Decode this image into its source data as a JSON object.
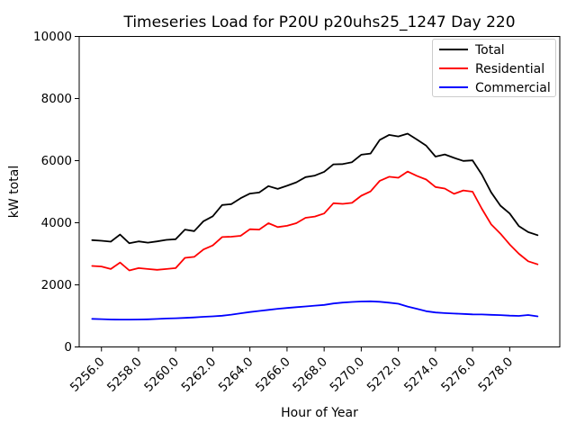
{
  "chart_data": {
    "type": "line",
    "title": "Timeseries Load for P20U p20uhs25_1247  Day 220",
    "xlabel": "Hour of Year",
    "ylabel": "kW total",
    "xlim": [
      5254.8,
      5280.7
    ],
    "ylim": [
      0,
      10000
    ],
    "grid": false,
    "legend_position": "upper right",
    "x": [
      5255.5,
      5256.0,
      5256.5,
      5257.0,
      5257.5,
      5258.0,
      5258.5,
      5259.0,
      5259.5,
      5260.0,
      5260.5,
      5261.0,
      5261.5,
      5262.0,
      5262.5,
      5263.0,
      5263.5,
      5264.0,
      5264.5,
      5265.0,
      5265.5,
      5266.0,
      5266.5,
      5267.0,
      5267.5,
      5268.0,
      5268.5,
      5269.0,
      5269.5,
      5270.0,
      5270.5,
      5271.0,
      5271.5,
      5272.0,
      5272.5,
      5273.0,
      5273.5,
      5274.0,
      5274.5,
      5275.0,
      5275.5,
      5276.0,
      5276.5,
      5277.0,
      5277.5,
      5278.0,
      5278.5,
      5279.0,
      5279.5
    ],
    "series": [
      {
        "name": "Total",
        "color": "#000000",
        "values": [
          3440,
          3420,
          3390,
          3620,
          3340,
          3400,
          3360,
          3400,
          3450,
          3470,
          3780,
          3730,
          4050,
          4210,
          4570,
          4600,
          4790,
          4940,
          4975,
          5180,
          5090,
          5190,
          5300,
          5470,
          5520,
          5640,
          5880,
          5890,
          5950,
          6190,
          6230,
          6670,
          6830,
          6780,
          6870,
          6680,
          6480,
          6130,
          6200,
          6090,
          5990,
          6010,
          5550,
          4980,
          4550,
          4300,
          3890,
          3700,
          3600
        ]
      },
      {
        "name": "Residential",
        "color": "#ff0000",
        "values": [
          2610,
          2590,
          2510,
          2720,
          2465,
          2540,
          2510,
          2485,
          2510,
          2540,
          2870,
          2900,
          3140,
          3270,
          3540,
          3550,
          3580,
          3790,
          3780,
          3985,
          3860,
          3900,
          3985,
          4160,
          4200,
          4300,
          4630,
          4610,
          4640,
          4870,
          5010,
          5350,
          5480,
          5450,
          5650,
          5510,
          5390,
          5150,
          5100,
          4930,
          5040,
          5000,
          4450,
          3950,
          3650,
          3300,
          3000,
          2760,
          2660
        ]
      },
      {
        "name": "Commercial",
        "color": "#0000ff",
        "values": [
          905,
          895,
          885,
          880,
          880,
          885,
          890,
          900,
          915,
          925,
          935,
          950,
          970,
          985,
          1005,
          1040,
          1085,
          1125,
          1160,
          1195,
          1230,
          1255,
          1280,
          1305,
          1330,
          1355,
          1400,
          1430,
          1450,
          1465,
          1470,
          1455,
          1425,
          1390,
          1300,
          1230,
          1150,
          1110,
          1090,
          1075,
          1065,
          1050,
          1045,
          1035,
          1025,
          1010,
          1000,
          1030,
          985
        ]
      }
    ],
    "xticks": [
      {
        "value": 5256,
        "label": "5256.0"
      },
      {
        "value": 5258,
        "label": "5258.0"
      },
      {
        "value": 5260,
        "label": "5260.0"
      },
      {
        "value": 5262,
        "label": "5262.0"
      },
      {
        "value": 5264,
        "label": "5264.0"
      },
      {
        "value": 5266,
        "label": "5266.0"
      },
      {
        "value": 5268,
        "label": "5268.0"
      },
      {
        "value": 5270,
        "label": "5270.0"
      },
      {
        "value": 5272,
        "label": "5272.0"
      },
      {
        "value": 5274,
        "label": "5274.0"
      },
      {
        "value": 5276,
        "label": "5276.0"
      },
      {
        "value": 5278,
        "label": "5278.0"
      }
    ],
    "yticks": [
      {
        "value": 0,
        "label": "0"
      },
      {
        "value": 2000,
        "label": "2000"
      },
      {
        "value": 4000,
        "label": "4000"
      },
      {
        "value": 6000,
        "label": "6000"
      },
      {
        "value": 8000,
        "label": "8000"
      },
      {
        "value": 10000,
        "label": "10000"
      }
    ]
  }
}
